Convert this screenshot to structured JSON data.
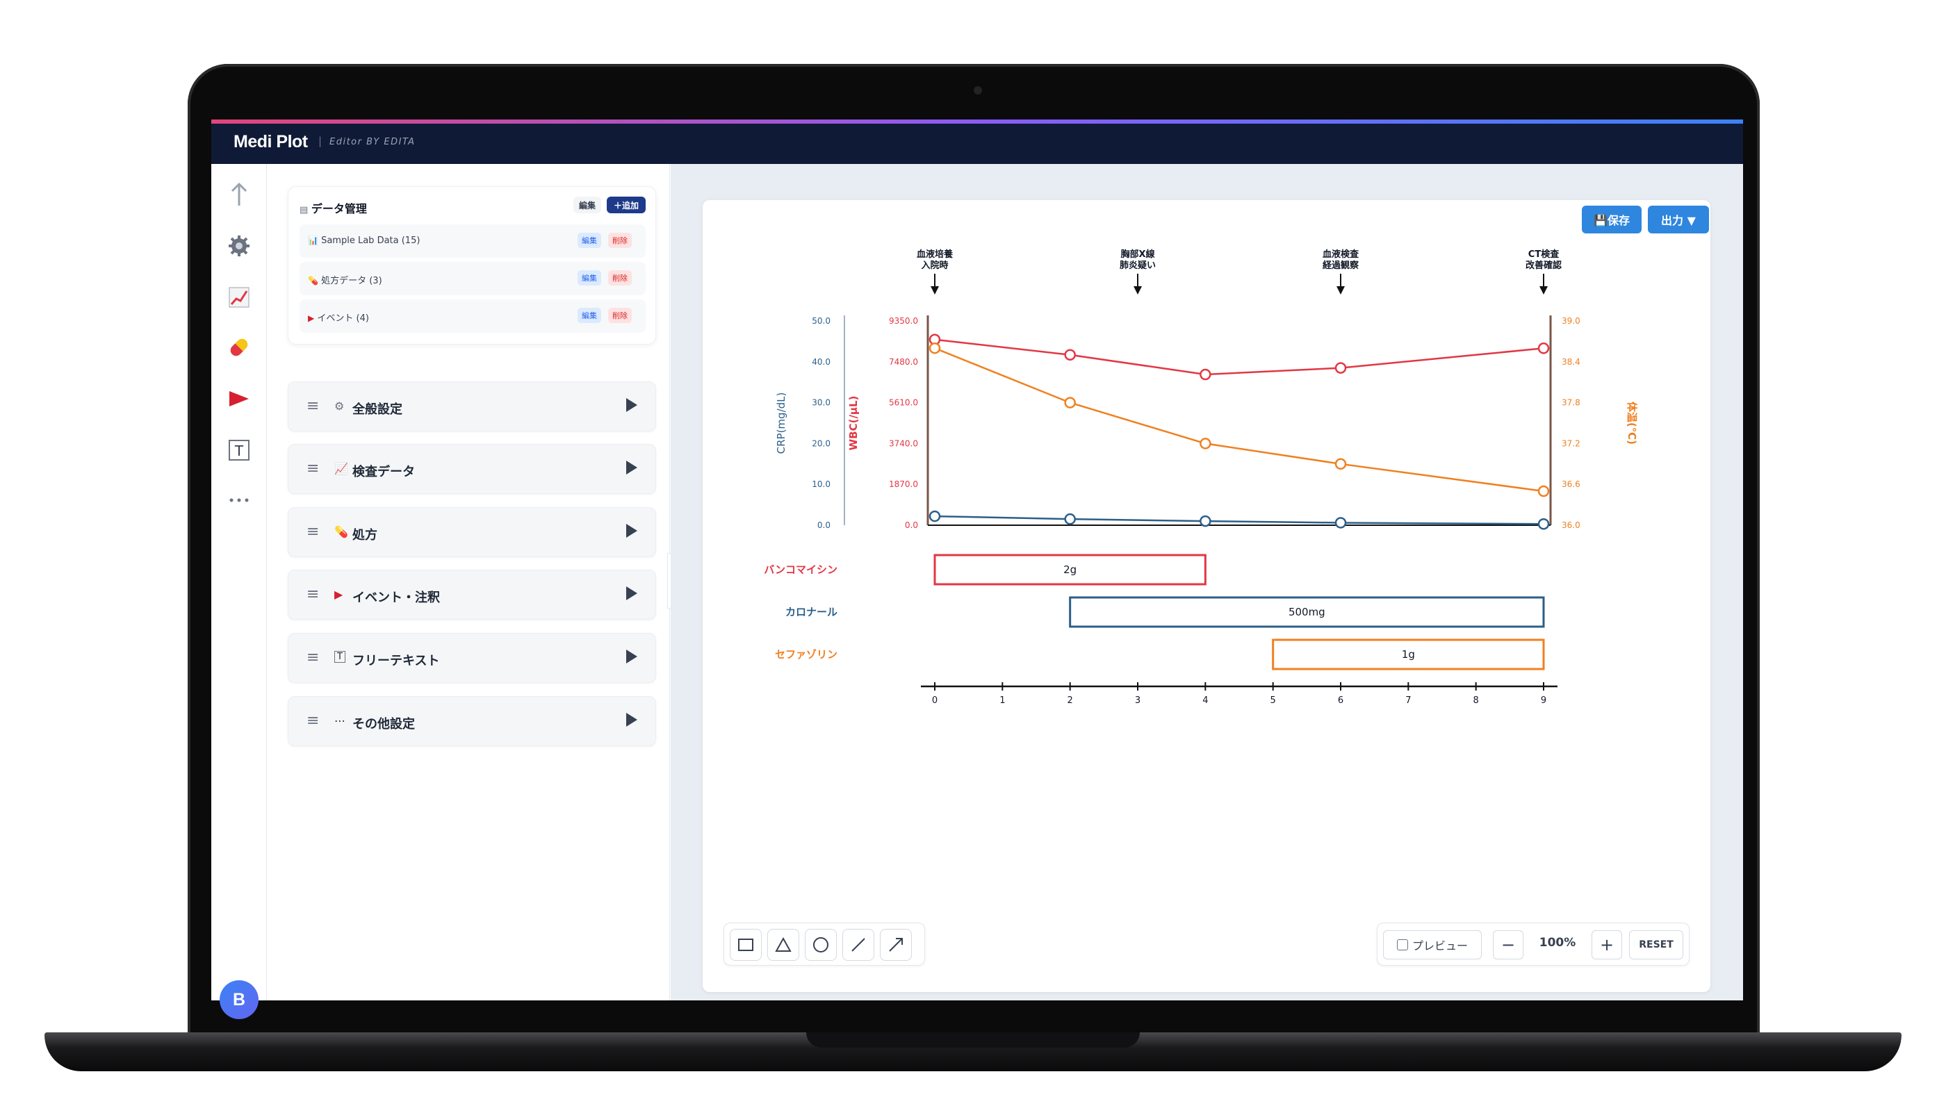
{
  "app": {
    "brand": "Medi Plot",
    "brand_separator": "|",
    "brand_sub": "Editor BY EDITA",
    "avatar_initial": "B"
  },
  "rail": {
    "icons": [
      "upload-arrow-icon",
      "gear-icon",
      "chart-icon",
      "pill-icon",
      "flag-icon",
      "text-box-icon",
      "more-dots-icon"
    ]
  },
  "data_manager": {
    "title": "データ管理",
    "edit_label": "編集",
    "add_label": "＋追加",
    "rows": [
      {
        "icon": "📊",
        "label": "Sample Lab Data (15)",
        "edit": "編集",
        "delete": "削除"
      },
      {
        "icon": "💊",
        "label": "処方データ (3)",
        "edit": "編集",
        "delete": "削除"
      },
      {
        "icon": "▶",
        "label": "イベント (4)",
        "edit": "編集",
        "delete": "削除"
      }
    ]
  },
  "accordion": [
    {
      "icon": "⚙",
      "label": "全般設定"
    },
    {
      "icon": "📈",
      "label": "検査データ"
    },
    {
      "icon": "💊",
      "label": "処方"
    },
    {
      "icon": "▶",
      "label": "イベント・注釈"
    },
    {
      "icon": "T",
      "label": "フリーテキスト"
    },
    {
      "icon": "⋯",
      "label": "その他設定"
    }
  ],
  "toolbar": {
    "save_label": "💾保存",
    "export_label": "出力 ▼"
  },
  "colors": {
    "crp": "#2c5f8a",
    "wbc": "#e23744",
    "temp": "#f08020",
    "axis_brown": "#7a5548"
  },
  "chart_data": {
    "type": "line",
    "x": [
      0,
      2,
      4,
      6,
      9
    ],
    "xlim": [
      0,
      9
    ],
    "xticks": [
      "0",
      "1",
      "2",
      "3",
      "4",
      "5",
      "6",
      "7",
      "8",
      "9"
    ],
    "events": [
      {
        "x": 0,
        "line1": "血液培養",
        "line2": "入院時"
      },
      {
        "x": 3,
        "line1": "胸部X線",
        "line2": "肺炎疑い"
      },
      {
        "x": 6,
        "line1": "血液検査",
        "line2": "経過観察"
      },
      {
        "x": 9,
        "line1": "CT検査",
        "line2": "改善確認"
      }
    ],
    "axes": {
      "crp": {
        "label": "CRP(mg/dL)",
        "ticks": [
          "0.0",
          "10.0",
          "20.0",
          "30.0",
          "40.0",
          "50.0"
        ],
        "ylim": [
          0,
          50
        ]
      },
      "wbc": {
        "label": "WBC(/μL)",
        "ticks": [
          "0.0",
          "1870.0",
          "3740.0",
          "5610.0",
          "7480.0",
          "9350.0"
        ],
        "ylim": [
          0,
          9350
        ]
      },
      "temp": {
        "label": "体温(℃)",
        "ticks": [
          "36.0",
          "36.6",
          "37.2",
          "37.8",
          "38.4",
          "39.0"
        ],
        "ylim": [
          36.0,
          39.0
        ]
      }
    },
    "series": [
      {
        "name": "WBC",
        "axis": "wbc",
        "values": [
          8500,
          7800,
          6900,
          7200,
          8100
        ]
      },
      {
        "name": "体温",
        "axis": "temp",
        "values": [
          38.6,
          37.8,
          37.2,
          36.9,
          36.5
        ]
      },
      {
        "name": "CRP",
        "axis": "crp",
        "values": [
          2.2,
          1.5,
          1.0,
          0.6,
          0.3
        ]
      }
    ],
    "prescriptions": [
      {
        "name": "バンコマイシン",
        "dose": "2g",
        "start": 0,
        "end": 4,
        "color": "#e23744"
      },
      {
        "name": "カロナール",
        "dose": "500mg",
        "start": 2,
        "end": 9,
        "color": "#2c5f8a"
      },
      {
        "name": "セファゾリン",
        "dose": "1g",
        "start": 5,
        "end": 9,
        "color": "#f08020"
      }
    ]
  },
  "bottom": {
    "shape_tools": [
      "rectangle-tool-icon",
      "triangle-tool-icon",
      "circle-tool-icon",
      "line-tool-icon",
      "arrow-tool-icon"
    ],
    "preview_label": "プレビュー",
    "zoom_minus": "−",
    "zoom_value": "100%",
    "zoom_plus": "+",
    "reset_label": "RESET"
  }
}
